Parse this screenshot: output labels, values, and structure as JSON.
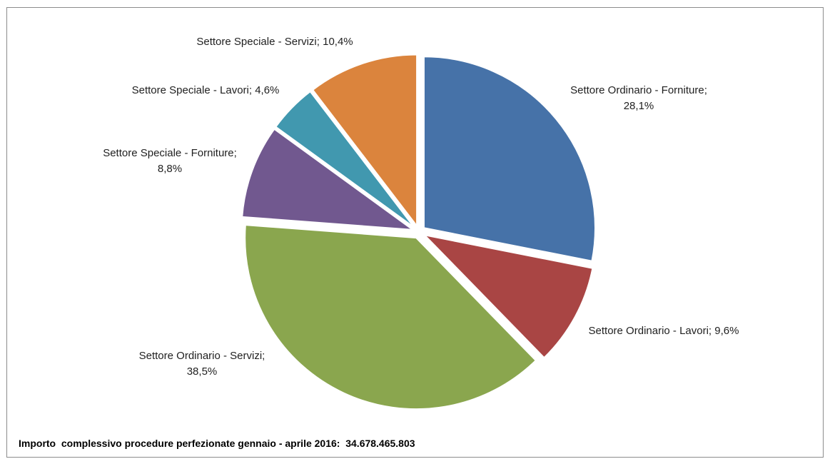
{
  "chart_data": {
    "type": "pie",
    "title": "",
    "slices": [
      {
        "label": "Settore Ordinario - Forniture",
        "value": 28.1,
        "display": "Settore Ordinario - Forniture;|28,1%",
        "color": "#4672A8"
      },
      {
        "label": "Settore Ordinario - Lavori",
        "value": 9.6,
        "display": "Settore Ordinario - Lavori; 9,6%",
        "color": "#A94544"
      },
      {
        "label": "Settore Ordinario - Servizi",
        "value": 38.5,
        "display": "Settore Ordinario - Servizi;|38,5%",
        "color": "#8AA64E"
      },
      {
        "label": "Settore Speciale - Forniture",
        "value": 8.8,
        "display": "Settore Speciale - Forniture;|8,8%",
        "color": "#71588F"
      },
      {
        "label": "Settore Speciale - Lavori",
        "value": 4.6,
        "display": "Settore Speciale - Lavori; 4,6%",
        "color": "#4198AF"
      },
      {
        "label": "Settore Speciale - Servizi",
        "value": 10.4,
        "display": "Settore Speciale - Servizi; 10,4%",
        "color": "#DB843D"
      }
    ]
  },
  "footer": {
    "note": "Importo  complessivo procedure perfezionate gennaio - aprile 2016:  34.678.465.803"
  }
}
